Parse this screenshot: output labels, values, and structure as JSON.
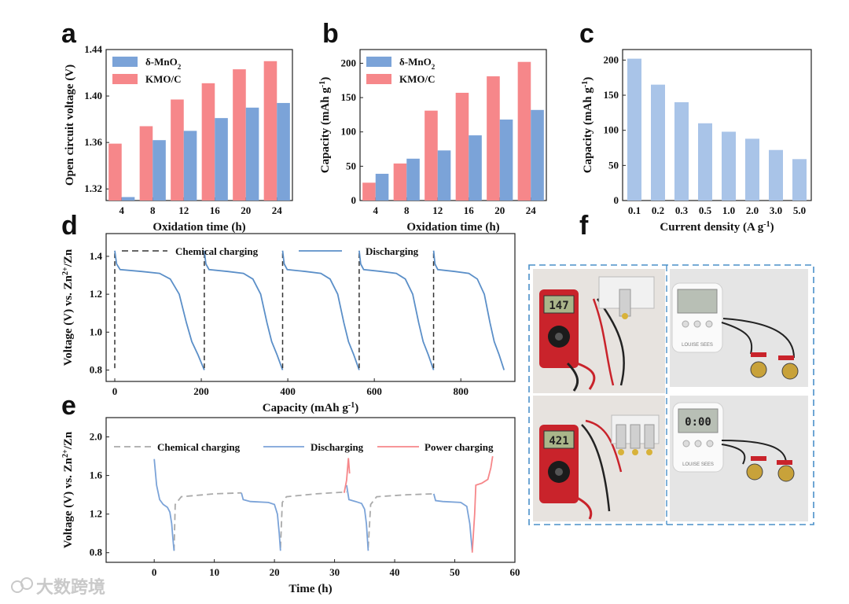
{
  "panel_labels": {
    "a": "a",
    "b": "b",
    "c": "c",
    "d": "d",
    "e": "e",
    "f": "f"
  },
  "colors": {
    "mno2": "#7ba3d8",
    "kmo": "#f6878a",
    "gray": "#aaaaaa",
    "black": "#333333"
  },
  "watermark": "大数跨境",
  "chart_data": [
    {
      "id": "a",
      "type": "bar",
      "xlabel": "Oxidation time (h)",
      "ylabel": "Open circuit voltage (V)",
      "categories": [
        "4",
        "8",
        "12",
        "16",
        "20",
        "24"
      ],
      "ylim": [
        1.31,
        1.44
      ],
      "yticks": [
        "1.32",
        "1.36",
        "1.40",
        "1.44"
      ],
      "ytick_values": [
        1.32,
        1.36,
        1.4,
        1.44
      ],
      "series": [
        {
          "name": "δ-MnO",
          "sub": "2",
          "color": "#7ba3d8",
          "values": [
            1.313,
            1.362,
            1.37,
            1.381,
            1.39,
            1.394
          ]
        },
        {
          "name": "KMO/C",
          "sub": "",
          "color": "#f6878a",
          "values": [
            1.359,
            1.374,
            1.397,
            1.411,
            1.423,
            1.43
          ]
        }
      ]
    },
    {
      "id": "b",
      "type": "bar",
      "xlabel": "Oxidation time (h)",
      "ylabel": "Capacity (mAh g",
      "ylabel_sup": "-1",
      "ylabel_end": ")",
      "categories": [
        "4",
        "8",
        "12",
        "16",
        "20",
        "24"
      ],
      "ylim": [
        0,
        220
      ],
      "yticks": [
        "0",
        "50",
        "100",
        "150",
        "200"
      ],
      "ytick_values": [
        0,
        50,
        100,
        150,
        200
      ],
      "series": [
        {
          "name": "δ-MnO",
          "sub": "2",
          "color": "#7ba3d8",
          "values": [
            39,
            61,
            73,
            95,
            118,
            132
          ]
        },
        {
          "name": "KMO/C",
          "sub": "",
          "color": "#f6878a",
          "values": [
            26,
            54,
            131,
            157,
            181,
            202
          ]
        }
      ]
    },
    {
      "id": "c",
      "type": "bar",
      "xlabel": "Current density (A g",
      "xlabel_sup": "-1",
      "xlabel_end": ")",
      "ylabel": "Capacity (mAh g",
      "ylabel_sup": "-1",
      "ylabel_end": ")",
      "categories": [
        "0.1",
        "0.2",
        "0.3",
        "0.5",
        "1.0",
        "2.0",
        "3.0",
        "5.0"
      ],
      "ylim": [
        0,
        215
      ],
      "yticks": [
        "0",
        "50",
        "100",
        "150",
        "200"
      ],
      "ytick_values": [
        0,
        50,
        100,
        150,
        200
      ],
      "values": [
        202,
        165,
        140,
        110,
        98,
        88,
        72,
        59
      ],
      "color": "#a9c4e8"
    },
    {
      "id": "d",
      "type": "line",
      "xlabel": "Capacity (mAh g",
      "xlabel_sup": "-1",
      "xlabel_end": ")",
      "ylabel": "Voltage (V) vs. Zn",
      "ylabel_sup": "2+",
      "ylabel_end": "/Zn",
      "xlim": [
        -20,
        925
      ],
      "ylim": [
        0.74,
        1.52
      ],
      "xticks": [
        "0",
        "200",
        "400",
        "600",
        "800"
      ],
      "xtick_values": [
        0,
        200,
        400,
        600,
        800
      ],
      "yticks": [
        "0.8",
        "1.0",
        "1.2",
        "1.4"
      ],
      "ytick_values": [
        0.8,
        1.0,
        1.2,
        1.4
      ],
      "legend": [
        "Chemical charging",
        "Discharging"
      ],
      "cycles": [
        {
          "start": 0,
          "end": 207
        },
        {
          "start": 207,
          "end": 388
        },
        {
          "start": 388,
          "end": 565
        },
        {
          "start": 565,
          "end": 737
        },
        {
          "start": 737,
          "end": 900
        }
      ]
    },
    {
      "id": "e",
      "type": "line",
      "xlabel": "Time (h)",
      "ylabel": "Voltage (V) vs. Zn",
      "ylabel_sup": "2+",
      "ylabel_end": "/Zn",
      "xlim": [
        -8,
        60
      ],
      "ylim": [
        0.7,
        2.2
      ],
      "xticks": [
        "0",
        "10",
        "20",
        "30",
        "40",
        "50",
        "60"
      ],
      "xtick_values": [
        0,
        10,
        20,
        30,
        40,
        50,
        60
      ],
      "yticks": [
        "0.8",
        "1.2",
        "1.6",
        "2.0"
      ],
      "ytick_values": [
        0.8,
        1.2,
        1.6,
        2.0
      ],
      "legend": [
        "Chemical charging",
        "Discharging",
        "Power charging"
      ],
      "series": [
        {
          "name": "Chemical charging",
          "style": "dashed",
          "color": "#aaaaaa",
          "segments": [
            [
              [
                3.3,
                0.82
              ],
              [
                3.5,
                1.3
              ],
              [
                4.5,
                1.38
              ],
              [
                10,
                1.41
              ],
              [
                14.5,
                1.42
              ]
            ],
            [
              [
                21,
                0.85
              ],
              [
                21.3,
                1.32
              ],
              [
                22,
                1.38
              ],
              [
                27,
                1.41
              ],
              [
                32,
                1.43
              ]
            ],
            [
              [
                35.6,
                0.85
              ],
              [
                36,
                1.3
              ],
              [
                37,
                1.38
              ],
              [
                42,
                1.4
              ],
              [
                46.5,
                1.41
              ]
            ]
          ]
        },
        {
          "name": "Discharging",
          "style": "solid",
          "color": "#7ba3d8",
          "segments": [
            [
              [
                0,
                1.77
              ],
              [
                0.4,
                1.5
              ],
              [
                0.9,
                1.35
              ],
              [
                1.5,
                1.3
              ],
              [
                2.2,
                1.27
              ],
              [
                2.6,
                1.22
              ],
              [
                2.9,
                1.1
              ],
              [
                3.1,
                0.95
              ],
              [
                3.3,
                0.82
              ]
            ],
            [
              [
                14.5,
                1.42
              ],
              [
                14.8,
                1.35
              ],
              [
                16,
                1.33
              ],
              [
                19,
                1.32
              ],
              [
                20,
                1.3
              ],
              [
                20.5,
                1.2
              ],
              [
                20.8,
                1.0
              ],
              [
                21,
                0.82
              ]
            ],
            [
              [
                32,
                1.5
              ],
              [
                32.4,
                1.35
              ],
              [
                33.5,
                1.33
              ],
              [
                34.5,
                1.31
              ],
              [
                35,
                1.25
              ],
              [
                35.3,
                1.1
              ],
              [
                35.6,
                0.82
              ]
            ],
            [
              [
                46.5,
                1.41
              ],
              [
                46.8,
                1.34
              ],
              [
                48,
                1.33
              ],
              [
                51,
                1.32
              ],
              [
                52,
                1.28
              ],
              [
                52.5,
                1.1
              ],
              [
                52.9,
                0.82
              ]
            ]
          ]
        },
        {
          "name": "Power charging",
          "style": "solid",
          "color": "#f6878a",
          "segments": [
            [
              [
                31.6,
                1.42
              ],
              [
                32.0,
                1.55
              ],
              [
                32.3,
                1.78
              ],
              [
                32.5,
                1.62
              ]
            ],
            [
              [
                52.9,
                0.8
              ],
              [
                53.3,
                1.2
              ],
              [
                53.5,
                1.5
              ],
              [
                54.5,
                1.52
              ],
              [
                55.5,
                1.56
              ],
              [
                56,
                1.68
              ],
              [
                56.3,
                1.8
              ]
            ]
          ]
        }
      ]
    }
  ],
  "photos": {
    "meter_top_reading": "147",
    "meter_bottom_reading": "421",
    "timer_brand": "LOUISE SEES",
    "timer_top_reading": "",
    "timer_bottom_reading": "0:00"
  }
}
